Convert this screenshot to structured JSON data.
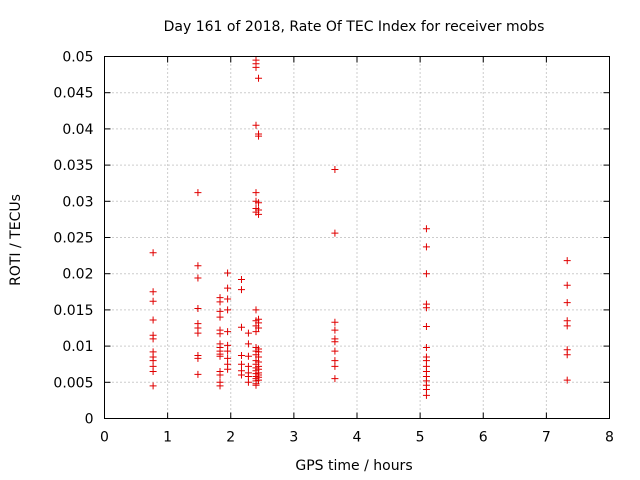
{
  "chart_data": {
    "type": "scatter",
    "title": "Day 161 of 2018, Rate Of TEC Index for receiver mobs",
    "xlabel": "GPS time / hours",
    "ylabel": "ROTI / TECUs",
    "xlim": [
      0,
      8
    ],
    "ylim": [
      0,
      0.05
    ],
    "grid": true,
    "marker": "+",
    "color": "#e00000",
    "xticks": [
      "0",
      "1",
      "2",
      "3",
      "4",
      "5",
      "6",
      "7",
      "8"
    ],
    "yticks": [
      "0",
      "0.005",
      "0.01",
      "0.015",
      "0.02",
      "0.025",
      "0.03",
      "0.035",
      "0.04",
      "0.045",
      "0.05"
    ],
    "series": [
      {
        "name": "mobs",
        "points": [
          [
            0.77,
            0.0229
          ],
          [
            0.77,
            0.0175
          ],
          [
            0.77,
            0.0162
          ],
          [
            0.77,
            0.0136
          ],
          [
            0.77,
            0.0115
          ],
          [
            0.77,
            0.011
          ],
          [
            0.77,
            0.0092
          ],
          [
            0.77,
            0.0085
          ],
          [
            0.77,
            0.008
          ],
          [
            0.77,
            0.0072
          ],
          [
            0.77,
            0.0065
          ],
          [
            0.77,
            0.0045
          ],
          [
            1.48,
            0.0312
          ],
          [
            1.48,
            0.0211
          ],
          [
            1.48,
            0.0194
          ],
          [
            1.48,
            0.0152
          ],
          [
            1.48,
            0.0131
          ],
          [
            1.48,
            0.0125
          ],
          [
            1.48,
            0.0118
          ],
          [
            1.48,
            0.0087
          ],
          [
            1.48,
            0.0083
          ],
          [
            1.48,
            0.0061
          ],
          [
            1.83,
            0.0167
          ],
          [
            1.83,
            0.0161
          ],
          [
            1.83,
            0.0148
          ],
          [
            1.83,
            0.014
          ],
          [
            1.83,
            0.0122
          ],
          [
            1.83,
            0.0117
          ],
          [
            1.83,
            0.0103
          ],
          [
            1.83,
            0.0098
          ],
          [
            1.83,
            0.0093
          ],
          [
            1.83,
            0.0089
          ],
          [
            1.83,
            0.0086
          ],
          [
            1.83,
            0.0065
          ],
          [
            1.83,
            0.006
          ],
          [
            1.83,
            0.005
          ],
          [
            1.83,
            0.0045
          ],
          [
            1.95,
            0.0201
          ],
          [
            1.95,
            0.018
          ],
          [
            1.95,
            0.0165
          ],
          [
            1.95,
            0.015
          ],
          [
            1.95,
            0.012
          ],
          [
            1.95,
            0.0101
          ],
          [
            1.95,
            0.0093
          ],
          [
            1.95,
            0.0083
          ],
          [
            1.95,
            0.0075
          ],
          [
            1.95,
            0.0068
          ],
          [
            2.17,
            0.0192
          ],
          [
            2.17,
            0.0178
          ],
          [
            2.17,
            0.0126
          ],
          [
            2.17,
            0.0087
          ],
          [
            2.17,
            0.0075
          ],
          [
            2.17,
            0.0066
          ],
          [
            2.17,
            0.006
          ],
          [
            2.28,
            0.0118
          ],
          [
            2.28,
            0.0103
          ],
          [
            2.28,
            0.0086
          ],
          [
            2.28,
            0.0072
          ],
          [
            2.28,
            0.0063
          ],
          [
            2.28,
            0.0058
          ],
          [
            2.28,
            0.005
          ],
          [
            2.4,
            0.0495
          ],
          [
            2.4,
            0.049
          ],
          [
            2.4,
            0.0485
          ],
          [
            2.4,
            0.0405
          ],
          [
            2.4,
            0.0312
          ],
          [
            2.4,
            0.03
          ],
          [
            2.4,
            0.029
          ],
          [
            2.4,
            0.0285
          ],
          [
            2.4,
            0.015
          ],
          [
            2.4,
            0.0135
          ],
          [
            2.4,
            0.0128
          ],
          [
            2.4,
            0.012
          ],
          [
            2.4,
            0.0098
          ],
          [
            2.4,
            0.0093
          ],
          [
            2.4,
            0.0088
          ],
          [
            2.4,
            0.008
          ],
          [
            2.4,
            0.0075
          ],
          [
            2.4,
            0.007
          ],
          [
            2.4,
            0.0066
          ],
          [
            2.4,
            0.0062
          ],
          [
            2.4,
            0.0058
          ],
          [
            2.4,
            0.0055
          ],
          [
            2.4,
            0.0052
          ],
          [
            2.4,
            0.0048
          ],
          [
            2.4,
            0.0046
          ],
          [
            2.44,
            0.047
          ],
          [
            2.44,
            0.0393
          ],
          [
            2.44,
            0.039
          ],
          [
            2.44,
            0.0298
          ],
          [
            2.44,
            0.0288
          ],
          [
            2.44,
            0.0282
          ],
          [
            2.44,
            0.0137
          ],
          [
            2.44,
            0.0132
          ],
          [
            2.44,
            0.0125
          ],
          [
            2.44,
            0.0096
          ],
          [
            2.44,
            0.0092
          ],
          [
            2.44,
            0.0085
          ],
          [
            2.44,
            0.0078
          ],
          [
            2.44,
            0.0072
          ],
          [
            2.44,
            0.0068
          ],
          [
            2.44,
            0.0063
          ],
          [
            2.44,
            0.006
          ],
          [
            2.44,
            0.0057
          ],
          [
            2.44,
            0.0053
          ],
          [
            3.65,
            0.0344
          ],
          [
            3.65,
            0.0256
          ],
          [
            3.65,
            0.0133
          ],
          [
            3.65,
            0.0122
          ],
          [
            3.65,
            0.011
          ],
          [
            3.65,
            0.0106
          ],
          [
            3.65,
            0.0093
          ],
          [
            3.65,
            0.008
          ],
          [
            3.65,
            0.0072
          ],
          [
            3.65,
            0.0055
          ],
          [
            5.1,
            0.0262
          ],
          [
            5.1,
            0.0237
          ],
          [
            5.1,
            0.02
          ],
          [
            5.1,
            0.0158
          ],
          [
            5.1,
            0.0153
          ],
          [
            5.1,
            0.0127
          ],
          [
            5.1,
            0.0098
          ],
          [
            5.1,
            0.0085
          ],
          [
            5.1,
            0.008
          ],
          [
            5.1,
            0.0072
          ],
          [
            5.1,
            0.0065
          ],
          [
            5.1,
            0.0058
          ],
          [
            5.1,
            0.0052
          ],
          [
            5.1,
            0.0046
          ],
          [
            5.1,
            0.004
          ],
          [
            5.1,
            0.0032
          ],
          [
            7.33,
            0.0218
          ],
          [
            7.33,
            0.0184
          ],
          [
            7.33,
            0.016
          ],
          [
            7.33,
            0.0135
          ],
          [
            7.33,
            0.0128
          ],
          [
            7.33,
            0.0095
          ],
          [
            7.33,
            0.0088
          ],
          [
            7.33,
            0.0053
          ]
        ]
      }
    ]
  }
}
